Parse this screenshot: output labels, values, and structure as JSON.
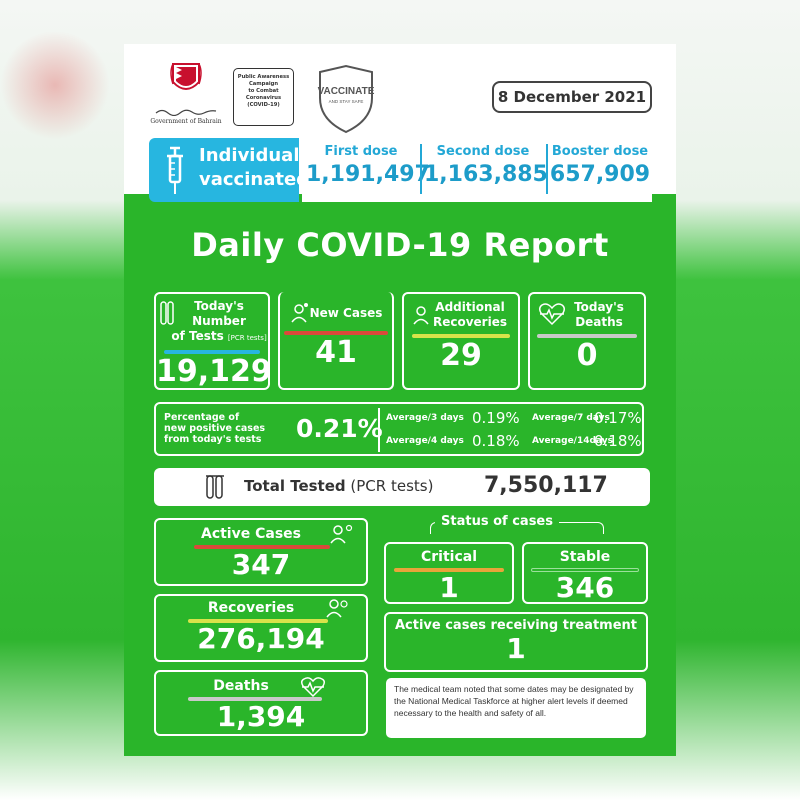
{
  "header": {
    "gov_text": "Government of Bahrain",
    "campaign": [
      "Public Awareness",
      "Campaign",
      "to Combat",
      "Coronavirus",
      "(COVID-19)"
    ],
    "vaccinate_line1": "VACCINATE",
    "vaccinate_line2": "AND STAY SAFE",
    "date": "8 December 2021"
  },
  "vaccination": {
    "label_line1": "Individuals",
    "label_line2": "vaccinated",
    "first_dose_label": "First dose",
    "first_dose_value": "1,191,497",
    "second_dose_label": "Second dose",
    "second_dose_value": "1,163,885",
    "booster_dose_label": "Booster dose",
    "booster_dose_value": "657,909"
  },
  "title": "Daily COVID-19 Report",
  "stats": {
    "tests_label1": "Today's Number",
    "tests_label2": "of Tests",
    "tests_label_note": "[PCR tests]",
    "tests_value": "19,129",
    "new_cases_label": "New Cases",
    "new_cases_value": "41",
    "recoveries_label1": "Additional",
    "recoveries_label2": "Recoveries",
    "recoveries_value": "29",
    "deaths_label1": "Today's",
    "deaths_label2": "Deaths",
    "deaths_value": "0"
  },
  "positivity": {
    "label1": "Percentage of",
    "label2": "new positive cases",
    "label3": "from today's tests",
    "value": "0.21%",
    "avg3_label": "Average/3 days",
    "avg3_value": "0.19%",
    "avg7_label": "Average/7 days",
    "avg7_value": "0.17%",
    "avg4_label": "Average/4 days",
    "avg4_value": "0.18%",
    "avg14_label": "Average/14days",
    "avg14_value": "0.18%"
  },
  "total": {
    "label_bold": "Total Tested",
    "label_paren": "(PCR tests)",
    "value": "7,550,117"
  },
  "totals": {
    "active_label": "Active Cases",
    "active_value": "347",
    "recoveries_label": "Recoveries",
    "recoveries_value": "276,194",
    "deaths_label": "Deaths",
    "deaths_value": "1,394"
  },
  "status": {
    "title": "Status of cases",
    "critical_label": "Critical",
    "critical_value": "1",
    "stable_label": "Stable",
    "stable_value": "346",
    "treatment_label": "Active cases receiving treatment",
    "treatment_value": "1"
  },
  "note": "The medical team noted that some dates may be designated by the National Medical Taskforce at higher alert levels if deemed necessary to the health and safety of all.",
  "colors": {
    "green": "#2ab52a",
    "blue": "#27b6e0",
    "red_bar": "#d94a3a",
    "yellow_bar": "#d8e34a",
    "gray_bar": "#c9c9c9",
    "orange_bar": "#e8a43a"
  }
}
